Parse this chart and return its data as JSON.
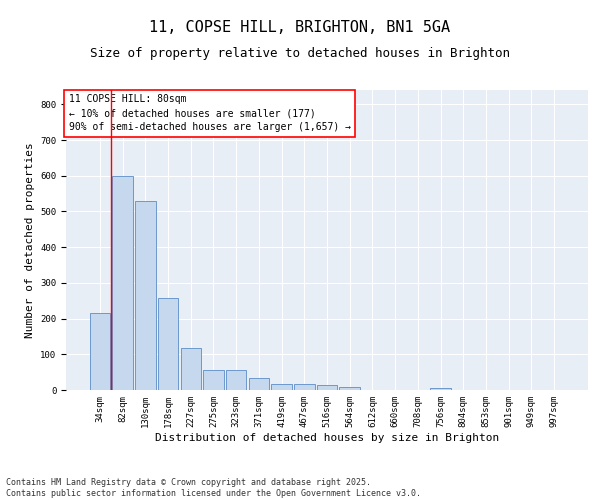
{
  "title": "11, COPSE HILL, BRIGHTON, BN1 5GA",
  "subtitle": "Size of property relative to detached houses in Brighton",
  "xlabel": "Distribution of detached houses by size in Brighton",
  "ylabel": "Number of detached properties",
  "bar_labels": [
    "34sqm",
    "82sqm",
    "130sqm",
    "178sqm",
    "227sqm",
    "275sqm",
    "323sqm",
    "371sqm",
    "419sqm",
    "467sqm",
    "516sqm",
    "564sqm",
    "612sqm",
    "660sqm",
    "708sqm",
    "756sqm",
    "804sqm",
    "853sqm",
    "901sqm",
    "949sqm",
    "997sqm"
  ],
  "bar_values": [
    215,
    600,
    530,
    257,
    118,
    57,
    57,
    35,
    18,
    17,
    13,
    8,
    1,
    0,
    0,
    7,
    0,
    0,
    0,
    0,
    0
  ],
  "bar_color": "#c5d8ed",
  "bar_edge_color": "#5b8cc8",
  "bg_color": "#e8eef6",
  "annotation_box_text": "11 COPSE HILL: 80sqm\n← 10% of detached houses are smaller (177)\n90% of semi-detached houses are larger (1,657) →",
  "ylim": [
    0,
    840
  ],
  "yticks": [
    0,
    100,
    200,
    300,
    400,
    500,
    600,
    700,
    800
  ],
  "footer_line1": "Contains HM Land Registry data © Crown copyright and database right 2025.",
  "footer_line2": "Contains public sector information licensed under the Open Government Licence v3.0.",
  "title_fontsize": 11,
  "subtitle_fontsize": 9,
  "axis_label_fontsize": 8,
  "tick_fontsize": 6.5,
  "annotation_fontsize": 7,
  "footer_fontsize": 6
}
